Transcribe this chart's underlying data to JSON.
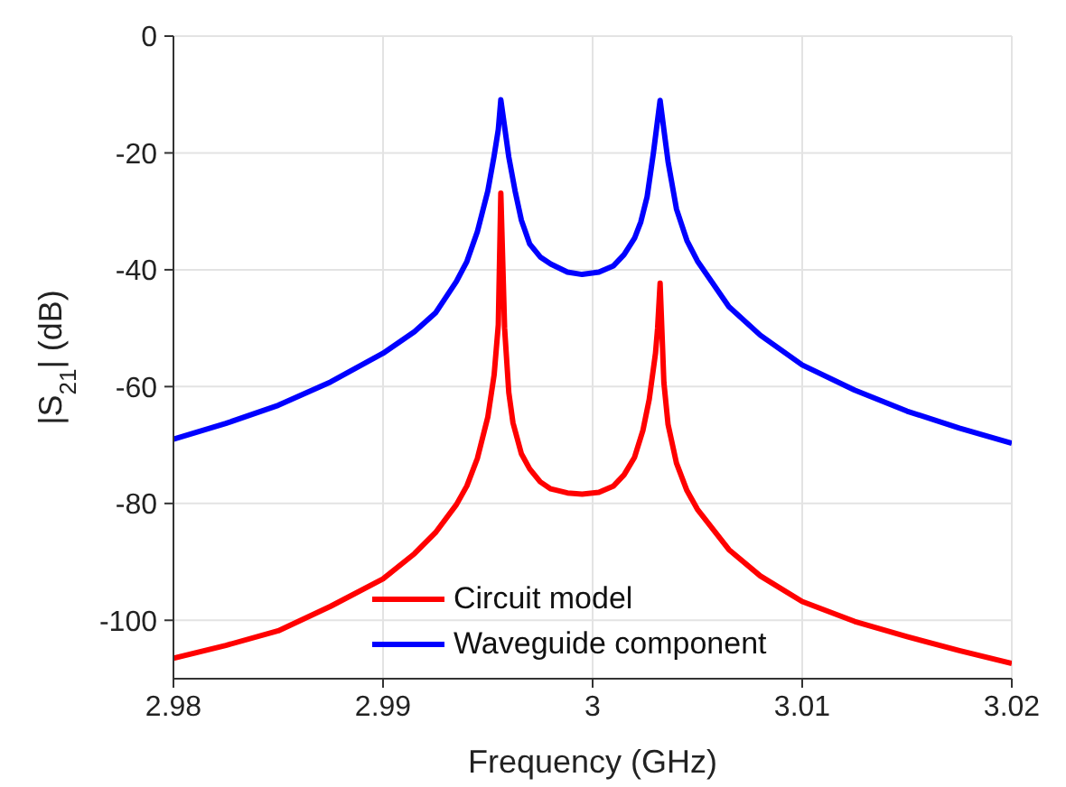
{
  "chart_data": {
    "type": "line",
    "xlabel": "Frequency (GHz)",
    "ylabel": "|S$_{21}$| (dB)",
    "xlim": [
      2.98,
      3.02
    ],
    "xticks": [
      2.98,
      2.99,
      {
        "value": 3,
        "label": "3"
      },
      3.01,
      3.02
    ],
    "ylim": [
      -110,
      0
    ],
    "yticks": [
      -100,
      -80,
      -60,
      -40,
      -20,
      0
    ],
    "grid": true,
    "legend": "bottom",
    "line_style": "solid",
    "marker": "none",
    "series": [
      {
        "name": "Circuit model",
        "color": "#ff0000",
        "x": [
          2.98,
          2.9825,
          2.985,
          2.9875,
          2.99,
          2.9915,
          2.9925,
          2.9935,
          2.994,
          2.9945,
          2.995,
          2.9953,
          2.9955,
          2.99562,
          2.9958,
          2.996,
          2.9962,
          2.9966,
          2.997,
          2.9975,
          2.998,
          2.9988,
          2.9995,
          3.0003,
          3.001,
          3.0015,
          3.002,
          3.0024,
          3.0027,
          3.003,
          3.0031,
          3.00322,
          3.0034,
          3.0036,
          3.004,
          3.0045,
          3.005,
          3.0065,
          3.008,
          3.01,
          3.0125,
          3.015,
          3.0175,
          3.02
        ],
        "values": [
          -106.5,
          -104.3,
          -101.8,
          -97.6,
          -92.9,
          -88.6,
          -85,
          -80.2,
          -77,
          -72.3,
          -65.2,
          -58,
          -49.4,
          -26.9,
          -50,
          -61,
          -66.2,
          -71.5,
          -74.1,
          -76.3,
          -77.5,
          -78.2,
          -78.4,
          -78.1,
          -77,
          -75.1,
          -72.1,
          -67.5,
          -62.2,
          -54.3,
          -50,
          -42.3,
          -59.3,
          -66.5,
          -73.1,
          -77.8,
          -81,
          -87.9,
          -92.4,
          -96.8,
          -100.2,
          -102.8,
          -105.2,
          -107.4
        ]
      },
      {
        "name": "Waveguide component",
        "color": "#0000ff",
        "x": [
          2.98,
          2.9825,
          2.985,
          2.9875,
          2.99,
          2.9915,
          2.9925,
          2.9935,
          2.994,
          2.9945,
          2.995,
          2.9953,
          2.9955,
          2.99562,
          2.9958,
          2.996,
          2.9963,
          2.9966,
          2.997,
          2.9975,
          2.998,
          2.9988,
          2.9995,
          3.0003,
          3.001,
          3.0015,
          3.002,
          3.0023,
          3.0026,
          3.0029,
          3.00322,
          3.0034,
          3.0036,
          3.004,
          3.0045,
          3.005,
          3.0065,
          3.008,
          3.01,
          3.0125,
          3.015,
          3.0175,
          3.02
        ],
        "values": [
          -69,
          -66.3,
          -63.2,
          -59.2,
          -54.3,
          -50.6,
          -47.4,
          -42,
          -38.6,
          -33.5,
          -26.5,
          -20.5,
          -16,
          -10.9,
          -15.5,
          -20.7,
          -26.5,
          -31.5,
          -35.6,
          -37.8,
          -39,
          -40.4,
          -40.8,
          -40.4,
          -39.3,
          -37.4,
          -34.6,
          -31.8,
          -27.5,
          -20,
          -11,
          -16,
          -21.5,
          -29.6,
          -35,
          -38.5,
          -46.3,
          -51.2,
          -56.3,
          -60.6,
          -64.2,
          -67.1,
          -69.7
        ]
      }
    ]
  }
}
